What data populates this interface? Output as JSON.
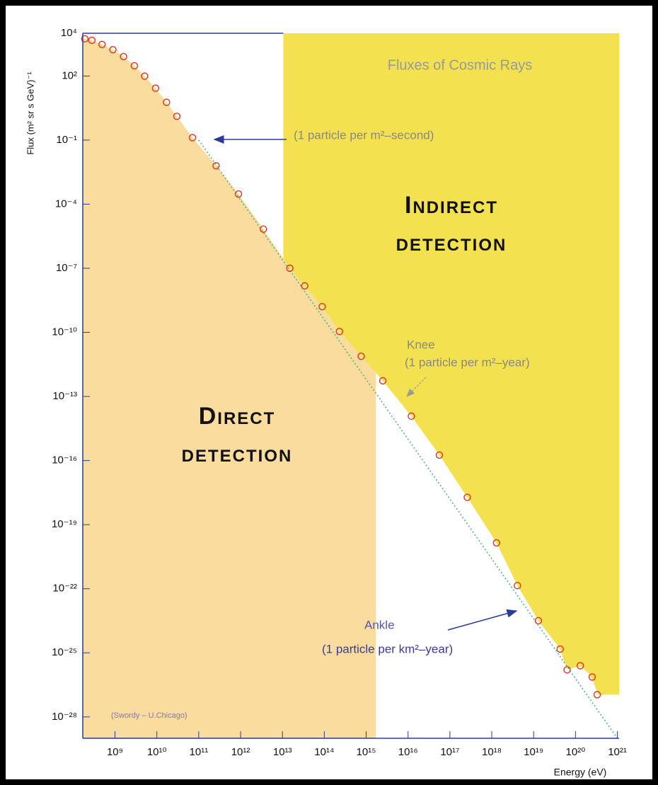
{
  "chart_data": {
    "type": "scatter",
    "title": "Fluxes of Cosmic Rays",
    "x_label": "Energy (eV)",
    "y_label": "Flux (m² sr s GeV)⁻¹",
    "log_x": true,
    "log_y": true,
    "xlim": [
      170000000.0,
      1.1e+21
    ],
    "ylim": [
      1e-29,
      10000.0
    ],
    "xticks": [
      {
        "value": 1000000000.0,
        "label": "10⁹"
      },
      {
        "value": 10000000000.0,
        "label": "10¹⁰"
      },
      {
        "value": 100000000000.0,
        "label": "10¹¹"
      },
      {
        "value": 1000000000000.0,
        "label": "10¹²"
      },
      {
        "value": 10000000000000.0,
        "label": "10¹³"
      },
      {
        "value": 100000000000000.0,
        "label": "10¹⁴"
      },
      {
        "value": 1000000000000000.0,
        "label": "10¹⁵"
      },
      {
        "value": 1e+16,
        "label": "10¹⁶"
      },
      {
        "value": 1e+17,
        "label": "10¹⁷"
      },
      {
        "value": 1e+18,
        "label": "10¹⁸"
      },
      {
        "value": 1e+19,
        "label": "10¹⁹"
      },
      {
        "value": 1e+20,
        "label": "10²⁰"
      },
      {
        "value": 1e+21,
        "label": "10²¹"
      }
    ],
    "yticks": [
      {
        "value": 10000.0,
        "label": "10⁴"
      },
      {
        "value": 100.0,
        "label": "10²"
      },
      {
        "value": 0.1,
        "label": "10⁻¹"
      },
      {
        "value": 0.0001,
        "label": "10⁻⁴"
      },
      {
        "value": 1e-07,
        "label": "10⁻⁷"
      },
      {
        "value": 1e-10,
        "label": "10⁻¹⁰"
      },
      {
        "value": 1e-13,
        "label": "10⁻¹³"
      },
      {
        "value": 1e-16,
        "label": "10⁻¹⁶"
      },
      {
        "value": 1e-19,
        "label": "10⁻¹⁹"
      },
      {
        "value": 1e-22,
        "label": "10⁻²²"
      },
      {
        "value": 1e-25,
        "label": "10⁻²⁵"
      },
      {
        "value": 1e-28,
        "label": "10⁻²⁸"
      }
    ],
    "x": [
      190000000.0,
      280000000.0,
      490000000.0,
      890000000.0,
      1600000000.0,
      2900000000.0,
      5100000000.0,
      9300000000.0,
      17000000000.0,
      30000000000.0,
      71000000000.0,
      260000000000.0,
      890000000000.0,
      3500000000000.0,
      15000000000000.0,
      34000000000000.0,
      89000000000000.0,
      230000000000000.0,
      760000000000000.0,
      2500000000000000.0,
      1.2e+16,
      5.6e+16,
      2.6e+17,
      1.3e+18,
      4.1e+18,
      1.3e+19,
      4.3e+19,
      6.3e+19,
      1.3e+20,
      2.5e+20,
      3.3e+20
    ],
    "values": [
      5500.0,
      4700.0,
      3000.0,
      1700.0,
      810.0,
      300.0,
      98,
      27,
      5.9,
      1.3,
      0.13,
      0.0063,
      0.0003,
      6.8e-06,
      1e-07,
      1.5e-08,
      1.6e-09,
      1.1e-10,
      7.6e-12,
      5.4e-13,
      1.2e-14,
      1.8e-16,
      1.9e-18,
      1.4e-20,
      1.4e-22,
      3.2e-24,
      1.5e-25,
      1.6e-26,
      2.5e-26,
      7.4e-27,
      1.1e-27
    ],
    "color": "#d8361f",
    "fit": {
      "x": [
        100000000000.0,
        1e+21
      ],
      "values": [
        0.1,
        1e-29
      ],
      "color": "#4fae6a"
    },
    "regions": [
      {
        "label": [
          "Direct",
          "detection"
        ],
        "x_range": [
          170000000.0,
          1700000000000000.0
        ],
        "side": "below",
        "color": "#fadc9e"
      },
      {
        "label": [
          "Indirect",
          "detection"
        ],
        "x_range": [
          10500000000000.0,
          1.1e+21
        ],
        "side": "above",
        "color": "#f3e150"
      }
    ],
    "annotations": {
      "second": "(1 particle per m²–second)",
      "knee": "Knee",
      "knee_rate": "(1 particle per m²–year)",
      "ankle": "Ankle",
      "ankle_rate": "(1 particle per km²–year)",
      "credit": "(Swordy – U.Chicago)"
    }
  }
}
